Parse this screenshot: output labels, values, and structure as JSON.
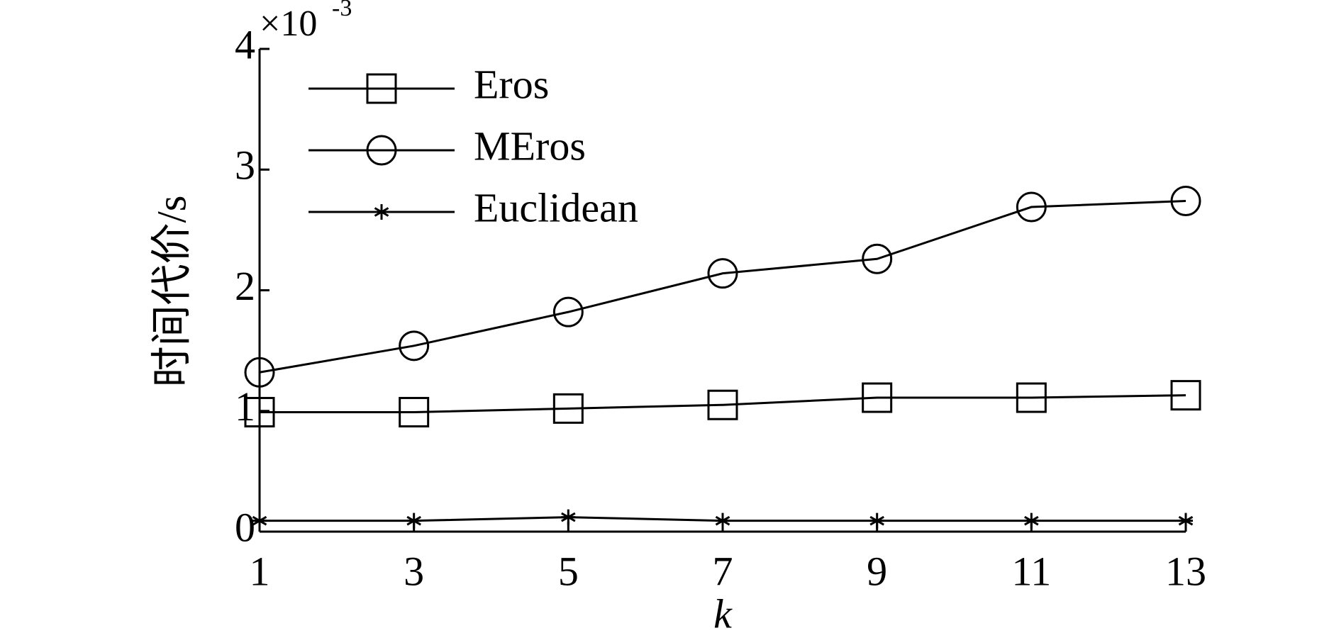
{
  "chart_data": {
    "type": "line",
    "y_label": "时间代价/s",
    "x_label": "k",
    "y_multiplier": "×10",
    "y_multiplier_exponent": "-3",
    "x": [
      1,
      3,
      5,
      7,
      9,
      11,
      13
    ],
    "xlim": [
      1,
      13
    ],
    "xticks": [
      1,
      3,
      5,
      7,
      9,
      11,
      13
    ],
    "ylim": [
      0,
      4
    ],
    "yticks": [
      0,
      1,
      2,
      3,
      4
    ],
    "grid": false,
    "legend": "upper left",
    "series": [
      {
        "name": "Eros",
        "color": "#000000",
        "marker": "square",
        "values": [
          0.99,
          0.99,
          1.02,
          1.05,
          1.11,
          1.11,
          1.13
        ]
      },
      {
        "name": "MEros",
        "color": "#000000",
        "marker": "circle",
        "values": [
          1.32,
          1.54,
          1.82,
          2.14,
          2.26,
          2.69,
          2.74
        ]
      },
      {
        "name": "Euclidean",
        "color": "#000000",
        "marker": "star",
        "values": [
          0.09,
          0.09,
          0.12,
          0.09,
          0.09,
          0.09,
          0.09
        ]
      }
    ]
  }
}
